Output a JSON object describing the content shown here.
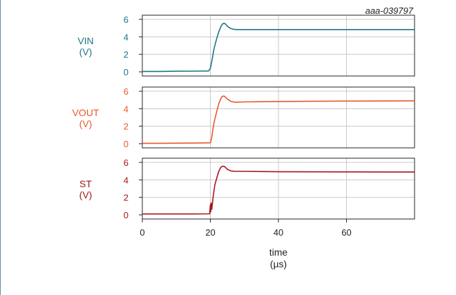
{
  "figure_id": "aaa-039797",
  "x_axis": {
    "label_line1": "time",
    "label_line2": "(µs)",
    "ticks": [
      "0",
      "20",
      "40",
      "60"
    ],
    "range": [
      0,
      80
    ]
  },
  "colors": {
    "VIN": "#1a7585",
    "VOUT": "#e8572a",
    "ST": "#a3161b",
    "grid": "#c8c8c8",
    "frame": "#222222",
    "left_rule": "#5a8fb0"
  },
  "chart_data": [
    {
      "type": "line",
      "label_line1": "VIN",
      "label_line2": "(V)",
      "y_ticks": [
        "0",
        "2",
        "4",
        "6"
      ],
      "ylim": [
        0,
        6.5
      ],
      "xlim": [
        0,
        80
      ],
      "grid": true,
      "series": [
        {
          "x": [
            0,
            5,
            10,
            15,
            19.5,
            20,
            20.5,
            21,
            21.5,
            22,
            22.5,
            23,
            23.5,
            24,
            24.5,
            25,
            26,
            27,
            28,
            30,
            35,
            40,
            50,
            60,
            70,
            80
          ],
          "y": [
            0.05,
            0.05,
            0.07,
            0.08,
            0.1,
            0.4,
            1.4,
            2.5,
            3.3,
            4.0,
            4.6,
            5.1,
            5.45,
            5.55,
            5.45,
            5.2,
            4.95,
            4.85,
            4.83,
            4.83,
            4.83,
            4.83,
            4.83,
            4.83,
            4.83,
            4.83
          ]
        }
      ]
    },
    {
      "type": "line",
      "label_line1": "VOUT",
      "label_line2": "(V)",
      "y_ticks": [
        "0",
        "2",
        "4",
        "6"
      ],
      "ylim": [
        0,
        6.5
      ],
      "xlim": [
        0,
        80
      ],
      "grid": true,
      "series": [
        {
          "x": [
            0,
            5,
            10,
            15,
            20,
            20.3,
            20.8,
            21.3,
            22,
            22.5,
            23,
            23.5,
            24,
            24.5,
            25,
            26,
            27,
            28,
            30,
            35,
            40,
            50,
            60,
            70,
            80
          ],
          "y": [
            0.05,
            0.05,
            0.06,
            0.07,
            0.1,
            0.5,
            1.8,
            2.8,
            3.9,
            4.6,
            5.1,
            5.4,
            5.45,
            5.3,
            5.1,
            4.85,
            4.75,
            4.75,
            4.78,
            4.8,
            4.82,
            4.85,
            4.87,
            4.88,
            4.9
          ]
        }
      ]
    },
    {
      "type": "line",
      "label_line1": "ST",
      "label_line2": "(V)",
      "y_ticks": [
        "0",
        "2",
        "4",
        "6"
      ],
      "ylim": [
        0,
        6.5
      ],
      "xlim": [
        0,
        80
      ],
      "grid": true,
      "series": [
        {
          "x": [
            0,
            5,
            10,
            15,
            19.8,
            20.0,
            20.1,
            20.25,
            20.4,
            20.8,
            21.3,
            22,
            22.5,
            23,
            23.5,
            24,
            24.5,
            25,
            26,
            27,
            28,
            30,
            35,
            40,
            50,
            60,
            70,
            80
          ],
          "y": [
            0.1,
            0.1,
            0.1,
            0.1,
            0.12,
            1.2,
            0.3,
            1.4,
            0.6,
            2.0,
            3.4,
            4.4,
            5.0,
            5.4,
            5.55,
            5.55,
            5.4,
            5.2,
            5.02,
            4.98,
            4.97,
            4.97,
            4.95,
            4.93,
            4.92,
            4.91,
            4.9,
            4.9
          ]
        }
      ]
    }
  ]
}
